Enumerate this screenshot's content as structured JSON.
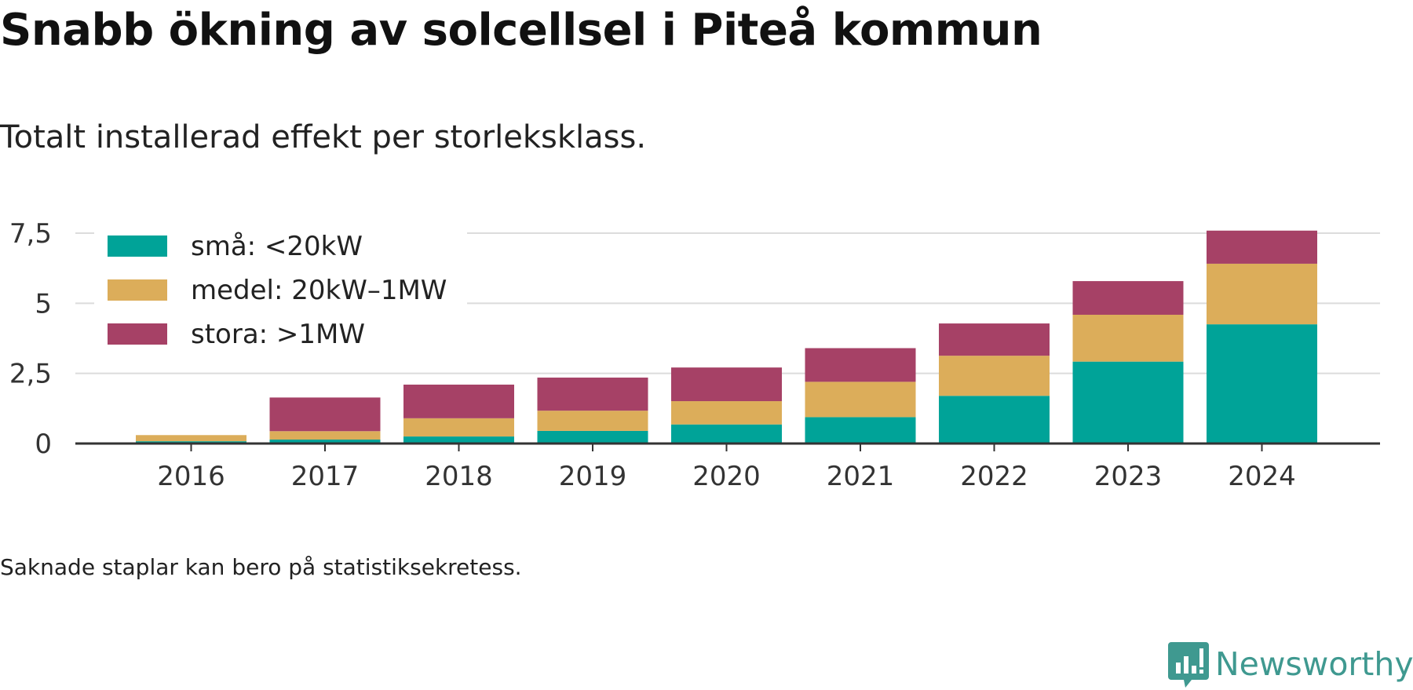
{
  "title": "Snabb ökning av solcellsel i Piteå kommun",
  "subtitle": "Totalt installerad effekt per storleksklass.",
  "note": "Saknade staplar kan bero på statistiksekretess.",
  "brand": {
    "name": "Newsworthy",
    "icon": "newsworthy-logo-icon",
    "color": "#3f9990"
  },
  "chart_data": {
    "type": "bar",
    "stacked": true,
    "categories": [
      "2016",
      "2017",
      "2018",
      "2019",
      "2020",
      "2021",
      "2022",
      "2023",
      "2024"
    ],
    "series": [
      {
        "name": "små: <20kW",
        "color": "#00a398",
        "values": [
          0.08,
          0.14,
          0.25,
          0.45,
          0.68,
          0.94,
          1.7,
          2.92,
          4.25
        ]
      },
      {
        "name": "medel: 20kW–1MW",
        "color": "#dcad5a",
        "values": [
          0.22,
          0.3,
          0.65,
          0.72,
          0.83,
          1.26,
          1.43,
          1.67,
          2.16
        ]
      },
      {
        "name": "stora: >1MW",
        "color": "#a64166",
        "values": [
          0.0,
          1.2,
          1.2,
          1.18,
          1.2,
          1.2,
          1.15,
          1.2,
          1.18
        ]
      }
    ],
    "yticks": [
      "0",
      "2,5",
      "5",
      "7,5"
    ],
    "ytick_values": [
      0,
      2.5,
      5,
      7.5
    ],
    "ylim": [
      0,
      7.6
    ],
    "grid": true,
    "legend": "top-left"
  }
}
